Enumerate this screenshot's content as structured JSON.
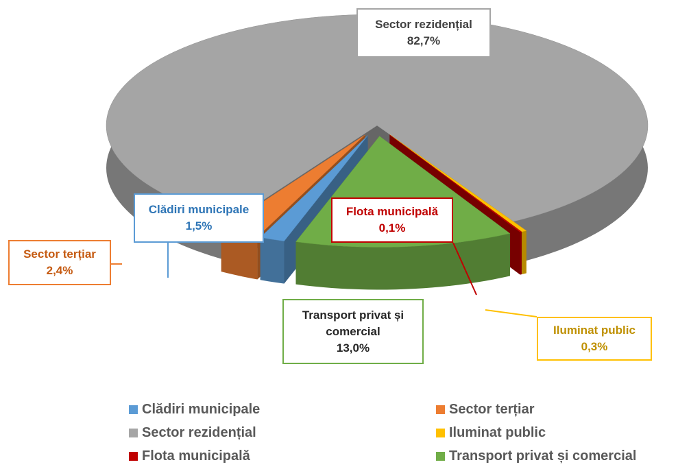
{
  "chart_data": {
    "type": "pie3d",
    "categories": [
      "Clădiri municipale",
      "Sector terțiar",
      "Sector rezidențial",
      "Iluminat public",
      "Flota municipală",
      "Transport privat și comercial"
    ],
    "values": [
      1.5,
      2.4,
      82.7,
      0.3,
      0.1,
      13.0
    ],
    "value_labels": [
      "1,5%",
      "2,4%",
      "82,7%",
      "0,3%",
      "0,1%",
      "13,0%"
    ],
    "colors": [
      "#5b9bd5",
      "#ed7d31",
      "#a5a5a5",
      "#ffc000",
      "#c00000",
      "#70ad47"
    ],
    "legend": "bottom"
  }
}
